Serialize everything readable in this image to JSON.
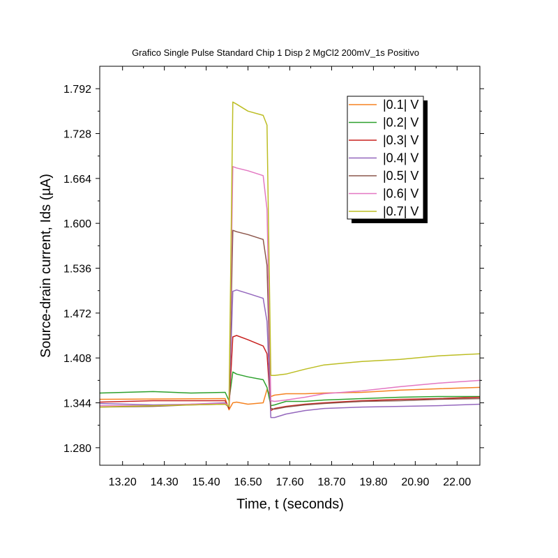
{
  "chart_data": {
    "type": "line",
    "title": "Grafico Single Pulse Standard Chip 1 Disp 2 MgCl2 200mV_1s Positivo",
    "xlabel": "Time, t (seconds)",
    "ylabel": "Source-drain current, Ids (µA)",
    "xlim": [
      12.6,
      22.6
    ],
    "ylim": [
      1.255,
      1.824
    ],
    "x_ticks": [
      13.2,
      14.3,
      15.4,
      16.5,
      17.6,
      18.7,
      19.8,
      20.9,
      22.0
    ],
    "x_tick_labels": [
      "13.20",
      "14.30",
      "15.40",
      "16.50",
      "17.60",
      "18.70",
      "19.80",
      "20.90",
      "22.00"
    ],
    "y_ticks": [
      1.28,
      1.344,
      1.408,
      1.472,
      1.536,
      1.6,
      1.664,
      1.728,
      1.792
    ],
    "y_tick_labels": [
      "1.280",
      "1.344",
      "1.408",
      "1.472",
      "1.536",
      "1.600",
      "1.664",
      "1.728",
      "1.792"
    ],
    "legend_position": "top-right",
    "grid": false,
    "series": [
      {
        "name": "|0.1| V",
        "color": "#f58220",
        "x": [
          12.6,
          15.9,
          16.0,
          16.1,
          16.2,
          16.5,
          16.9,
          17.0,
          17.1,
          17.2,
          17.5,
          18.0,
          18.5,
          19.5,
          20.5,
          21.5,
          22.6
        ],
        "values": [
          1.349,
          1.35,
          1.334,
          1.344,
          1.345,
          1.342,
          1.344,
          1.363,
          1.353,
          1.355,
          1.357,
          1.357,
          1.358,
          1.359,
          1.362,
          1.364,
          1.366
        ]
      },
      {
        "name": "|0.2| V",
        "color": "#2ca02c",
        "x": [
          12.6,
          14.0,
          15.0,
          15.9,
          16.0,
          16.1,
          16.2,
          16.5,
          16.9,
          17.0,
          17.1,
          17.2,
          17.5,
          18.0,
          18.5,
          19.5,
          20.5,
          21.5,
          22.6
        ],
        "values": [
          1.358,
          1.36,
          1.358,
          1.359,
          1.347,
          1.388,
          1.385,
          1.381,
          1.377,
          1.366,
          1.34,
          1.341,
          1.346,
          1.346,
          1.348,
          1.35,
          1.352,
          1.353,
          1.353
        ]
      },
      {
        "name": "|0.3| V",
        "color": "#c8201e",
        "x": [
          12.6,
          14.0,
          15.0,
          15.9,
          16.0,
          16.1,
          16.2,
          16.5,
          16.9,
          17.0,
          17.1,
          17.2,
          17.5,
          18.0,
          18.5,
          19.5,
          20.5,
          21.5,
          22.6
        ],
        "values": [
          1.345,
          1.347,
          1.347,
          1.347,
          1.336,
          1.438,
          1.44,
          1.434,
          1.425,
          1.414,
          1.333,
          1.336,
          1.339,
          1.342,
          1.344,
          1.347,
          1.349,
          1.35,
          1.352
        ]
      },
      {
        "name": "|0.4| V",
        "color": "#9467bd",
        "x": [
          12.6,
          14.0,
          15.0,
          15.9,
          16.0,
          16.1,
          16.2,
          16.5,
          16.9,
          17.0,
          17.1,
          17.2,
          17.5,
          18.0,
          18.5,
          19.5,
          20.5,
          21.5,
          22.6
        ],
        "values": [
          1.343,
          1.341,
          1.342,
          1.344,
          1.339,
          1.503,
          1.505,
          1.5,
          1.493,
          1.46,
          1.323,
          1.323,
          1.328,
          1.333,
          1.336,
          1.338,
          1.339,
          1.34,
          1.342
        ]
      },
      {
        "name": "|0.5| V",
        "color": "#8c564b",
        "x": [
          12.6,
          14.0,
          15.0,
          15.9,
          16.0,
          16.1,
          16.2,
          16.5,
          16.9,
          17.0,
          17.1,
          17.2,
          17.5,
          18.0,
          18.5,
          19.5,
          20.5,
          21.5,
          22.6
        ],
        "values": [
          1.338,
          1.339,
          1.341,
          1.342,
          1.338,
          1.59,
          1.588,
          1.584,
          1.577,
          1.54,
          1.336,
          1.335,
          1.338,
          1.341,
          1.343,
          1.346,
          1.347,
          1.349,
          1.35
        ]
      },
      {
        "name": "|0.6| V",
        "color": "#e377c2",
        "x": [
          12.6,
          14.0,
          15.0,
          15.9,
          16.0,
          16.1,
          16.2,
          16.5,
          16.9,
          17.0,
          17.1,
          17.2,
          17.5,
          18.0,
          18.5,
          19.5,
          20.5,
          21.5,
          22.6
        ],
        "values": [
          1.34,
          1.34,
          1.342,
          1.343,
          1.34,
          1.681,
          1.679,
          1.675,
          1.668,
          1.62,
          1.347,
          1.346,
          1.348,
          1.352,
          1.357,
          1.361,
          1.367,
          1.372,
          1.376
        ]
      },
      {
        "name": "|0.7| V",
        "color": "#bcbd22",
        "x": [
          12.6,
          14.0,
          15.0,
          15.9,
          16.0,
          16.1,
          16.2,
          16.5,
          16.9,
          17.0,
          17.1,
          17.2,
          17.5,
          18.0,
          18.5,
          19.5,
          20.5,
          21.5,
          22.6
        ],
        "values": [
          1.338,
          1.34,
          1.341,
          1.342,
          1.339,
          1.773,
          1.77,
          1.76,
          1.754,
          1.74,
          1.383,
          1.383,
          1.385,
          1.392,
          1.398,
          1.403,
          1.406,
          1.411,
          1.414
        ]
      }
    ]
  }
}
